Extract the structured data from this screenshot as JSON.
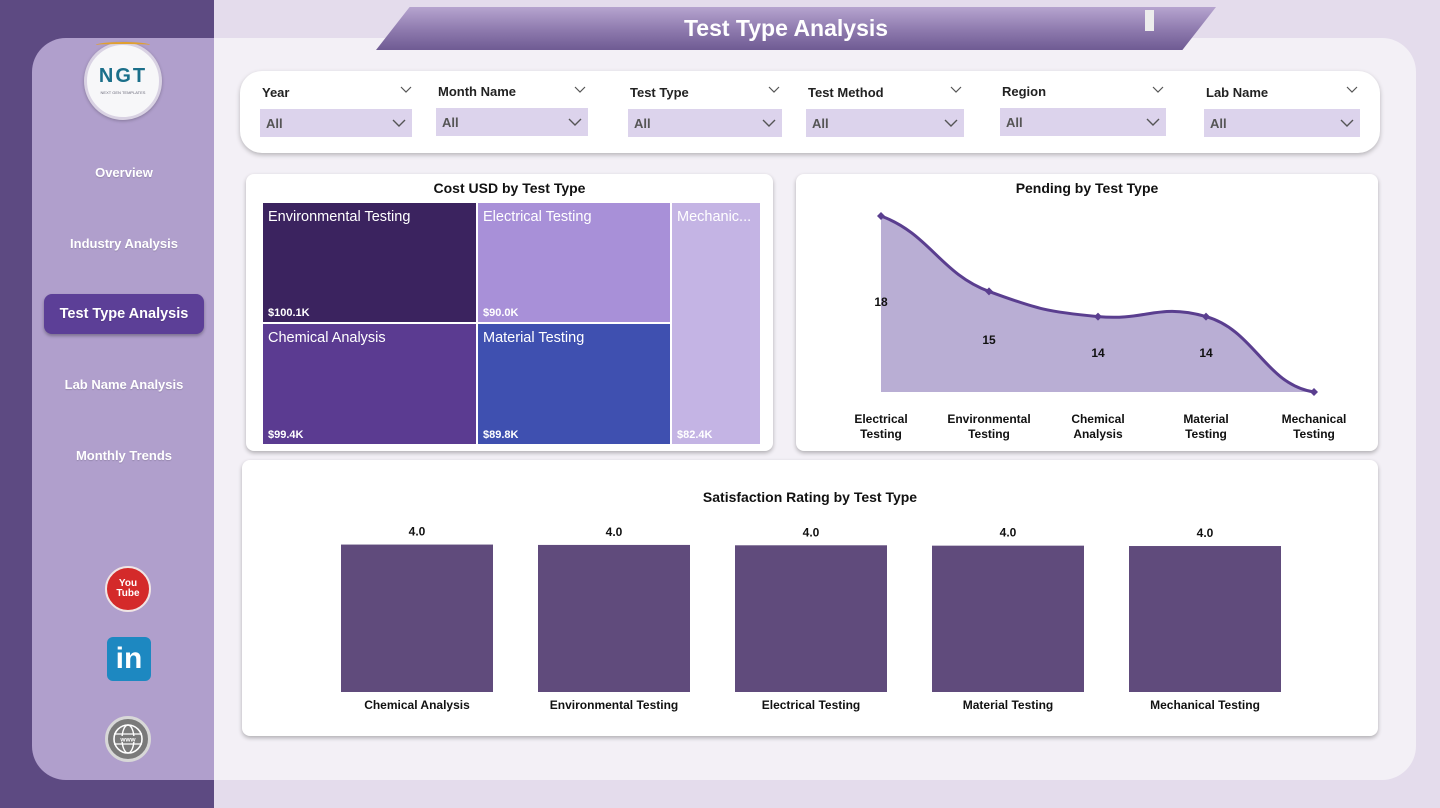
{
  "title": "Test Type Analysis",
  "logo": {
    "text": "NGT",
    "subtext": "NEXT GEN TEMPLATES"
  },
  "nav": [
    {
      "label": "Overview",
      "active": false
    },
    {
      "label": "Industry Analysis",
      "active": false
    },
    {
      "label": "Test Type Analysis",
      "active": true
    },
    {
      "label": "Lab Name Analysis",
      "active": false
    },
    {
      "label": "Monthly Trends",
      "active": false
    }
  ],
  "social": {
    "youtube": "You Tube",
    "linkedin": "in",
    "web": "www"
  },
  "filters": [
    {
      "label": "Year",
      "value": "All"
    },
    {
      "label": "Month Name",
      "value": "All"
    },
    {
      "label": "Test Type",
      "value": "All"
    },
    {
      "label": "Test Method",
      "value": "All"
    },
    {
      "label": "Region",
      "value": "All"
    },
    {
      "label": "Lab Name",
      "value": "All"
    }
  ],
  "treemap": {
    "title": "Cost USD by Test Type",
    "items": [
      {
        "name": "Environmental Testing",
        "value": "$100.1K",
        "color": "#3b235f"
      },
      {
        "name": "Electrical Testing",
        "value": "$90.0K",
        "color": "#a890d8"
      },
      {
        "name": "Mechanic...",
        "value": "$82.4K",
        "color": "#c4b4e4"
      },
      {
        "name": "Chemical Analysis",
        "value": "$99.4K",
        "color": "#5b3b91"
      },
      {
        "name": "Material Testing",
        "value": "$89.8K",
        "color": "#3f50b0"
      }
    ]
  },
  "chart_data": [
    {
      "type": "area",
      "title": "Pending by Test Type",
      "categories": [
        "Electrical Testing",
        "Environmental Testing",
        "Chemical Analysis",
        "Material Testing",
        "Mechanical Testing"
      ],
      "values": [
        18,
        15,
        14,
        14,
        11
      ],
      "data_labels": [
        "18",
        "15",
        "14",
        "14",
        ""
      ],
      "color": "#5a3e8f",
      "fill": "#b9aed4"
    },
    {
      "type": "bar",
      "title": "Satisfaction Rating by Test Type",
      "categories": [
        "Chemical Analysis",
        "Environmental Testing",
        "Electrical Testing",
        "Material Testing",
        "Mechanical Testing"
      ],
      "values": [
        4.03,
        4.02,
        4.01,
        4.0,
        3.99
      ],
      "data_labels": [
        "4.0",
        "4.0",
        "4.0",
        "4.0",
        "4.0"
      ],
      "ylim": [
        0,
        4.1
      ],
      "color": "#604b7c"
    }
  ]
}
